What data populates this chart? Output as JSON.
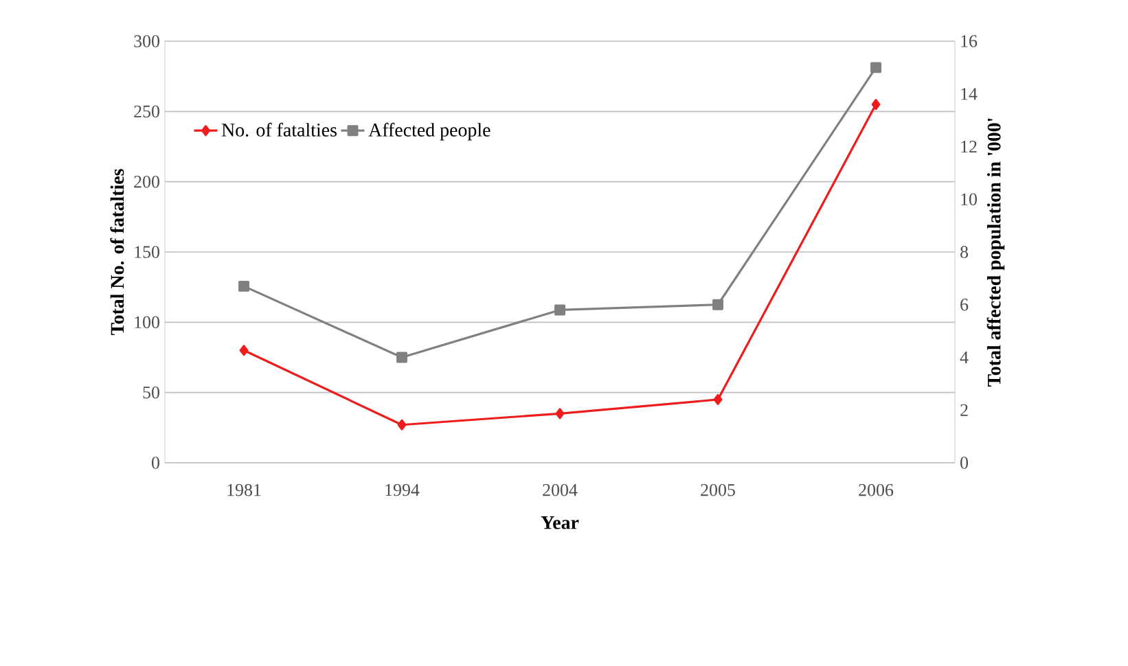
{
  "chart_data": {
    "type": "line",
    "xlabel": "Year",
    "ylabel": "Total No. of fatalties",
    "y2label": "Total affected population in '000'",
    "categories": [
      "1981",
      "1994",
      "2004",
      "2005",
      "2006"
    ],
    "series": [
      {
        "name": "No. of fatalties",
        "color": "#ee1c1c",
        "marker": "diamond",
        "values": [
          80,
          27,
          35,
          45,
          255
        ]
      },
      {
        "name": "Affected people",
        "color": "#808080",
        "marker": "square",
        "axis": "y2",
        "values": [
          6.7,
          4.0,
          5.8,
          6.0,
          15.0
        ]
      }
    ],
    "ylim": [
      0,
      300
    ],
    "yticks": [
      0,
      50,
      100,
      150,
      200,
      250,
      300
    ],
    "y2lim": [
      0,
      16
    ],
    "y2ticks": [
      0,
      2,
      4,
      6,
      8,
      10,
      12,
      14,
      16
    ],
    "grid": "y",
    "legend": "top left"
  }
}
